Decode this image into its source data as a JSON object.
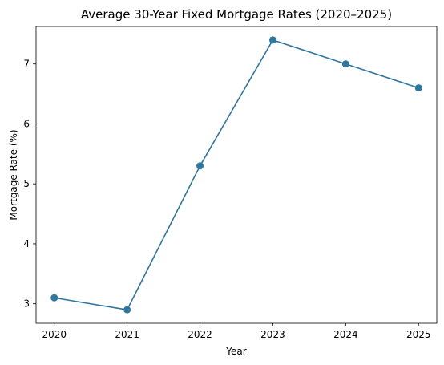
{
  "chart_data": {
    "type": "line",
    "title": "Average 30-Year Fixed Mortgage Rates (2020–2025)",
    "xlabel": "Year",
    "ylabel": "Mortgage Rate (%)",
    "x": [
      2020,
      2021,
      2022,
      2023,
      2024,
      2025
    ],
    "series": [
      {
        "values": [
          3.1,
          2.9,
          5.3,
          7.4,
          7.0,
          6.6
        ]
      }
    ],
    "xticks": [
      "2020",
      "2021",
      "2022",
      "2023",
      "2024",
      "2025"
    ],
    "yticks": [
      3,
      4,
      5,
      6,
      7
    ],
    "xlim": [
      2019.75,
      2025.25
    ],
    "ylim": [
      2.675,
      7.625
    ],
    "grid": false,
    "line_color": "#2e77a1",
    "marker": "circle"
  }
}
